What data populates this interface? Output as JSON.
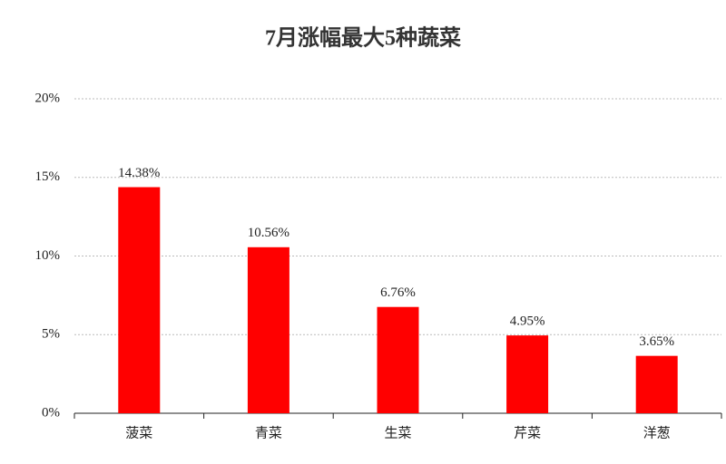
{
  "chart_data": {
    "type": "bar",
    "title": "7月涨幅最大5种蔬菜",
    "categories": [
      "菠菜",
      "青菜",
      "生菜",
      "芹菜",
      "洋葱"
    ],
    "values": [
      14.38,
      10.56,
      6.76,
      4.95,
      3.65
    ],
    "value_labels": [
      "14.38%",
      "10.56%",
      "6.76%",
      "4.95%",
      "3.65%"
    ],
    "color": "#ff0000",
    "ylim": [
      0,
      20
    ],
    "yticks": [
      {
        "value": 0,
        "label": "0%"
      },
      {
        "value": 5,
        "label": "5%"
      },
      {
        "value": 10,
        "label": "10%"
      },
      {
        "value": 15,
        "label": "15%"
      },
      {
        "value": 20,
        "label": "20%"
      }
    ],
    "grid": true
  }
}
